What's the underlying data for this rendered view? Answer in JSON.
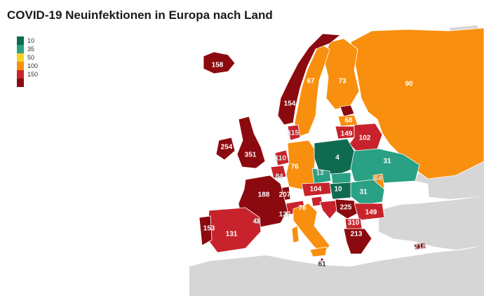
{
  "title": "COVID-19 Neuinfektionen in Europa nach Land",
  "legend": [
    {
      "label": "10",
      "color": "#0f6b4f"
    },
    {
      "label": "35",
      "color": "#2aa084"
    },
    {
      "label": "50",
      "color": "#f6d320"
    },
    {
      "label": "100",
      "color": "#f98f0e"
    },
    {
      "label": "150",
      "color": "#c8232c"
    },
    {
      "label": "",
      "color": "#8b0a0f"
    }
  ],
  "countries": [
    {
      "name": "Island",
      "value": "158"
    },
    {
      "name": "Norwegen",
      "value": "154"
    },
    {
      "name": "Schweden",
      "value": "67"
    },
    {
      "name": "Finnland",
      "value": "73"
    },
    {
      "name": "Russland",
      "value": "90"
    },
    {
      "name": "Estland",
      "value": ""
    },
    {
      "name": "Lettland",
      "value": "68"
    },
    {
      "name": "Litauen",
      "value": "149"
    },
    {
      "name": "Weißrussland",
      "value": "102"
    },
    {
      "name": "Dänemark",
      "value": "115"
    },
    {
      "name": "Irland",
      "value": "254"
    },
    {
      "name": "Vereinigtes Königreich",
      "value": "351"
    },
    {
      "name": "Niederlande",
      "value": "110"
    },
    {
      "name": "Belgien",
      "value": "84"
    },
    {
      "name": "Luxemburg",
      "value": "207"
    },
    {
      "name": "Deutschland",
      "value": "76"
    },
    {
      "name": "Polen",
      "value": "4"
    },
    {
      "name": "Tschechien",
      "value": "13"
    },
    {
      "name": "Slowakei",
      "value": ""
    },
    {
      "name": "Ukraine",
      "value": "31"
    },
    {
      "name": "Moldau",
      "value": "64"
    },
    {
      "name": "Rumänien",
      "value": "31"
    },
    {
      "name": "Ungarn",
      "value": "10"
    },
    {
      "name": "Österreich",
      "value": "104"
    },
    {
      "name": "Schweiz",
      "value": "127"
    },
    {
      "name": "Frankreich",
      "value": "188"
    },
    {
      "name": "Italien",
      "value": "76"
    },
    {
      "name": "Slowenien",
      "value": ""
    },
    {
      "name": "Kroatien",
      "value": ""
    },
    {
      "name": "Serbien",
      "value": "225"
    },
    {
      "name": "Bulgarien",
      "value": "149"
    },
    {
      "name": "Nordmazedonien",
      "value": "310"
    },
    {
      "name": "Griechenland",
      "value": "213"
    },
    {
      "name": "Andorra",
      "value": "48"
    },
    {
      "name": "Spanien",
      "value": "131"
    },
    {
      "name": "Portugal",
      "value": "153"
    },
    {
      "name": "Malta",
      "value": "61"
    },
    {
      "name": "Zypern",
      "value": "218"
    }
  ],
  "colors": {
    "sea": "#ffffff",
    "land_nodata": "#d6d6d6",
    "border": "#ffffff"
  }
}
